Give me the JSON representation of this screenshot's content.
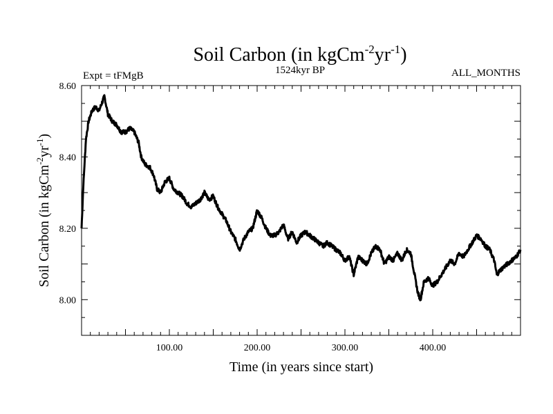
{
  "header": {
    "title_main": "Soil Carbon (in kgCm",
    "title_sup1": "-2",
    "title_mid": "yr",
    "title_sup2": "-1",
    "title_end": ")",
    "expt": "Expt = tFMgB",
    "period": "1524kyr BP",
    "months": "ALL_MONTHS"
  },
  "axes": {
    "xlabel": "Time (in years since start)",
    "ylabel_main": "Soil Carbon (in kgCm",
    "ylabel_sup1": "-2",
    "ylabel_mid": "yr",
    "ylabel_sup2": "-1",
    "ylabel_end": ")"
  },
  "chart_data": {
    "type": "line",
    "title": "Soil Carbon (in kgCm-2yr-1)",
    "subtitle": "1524kyr BP",
    "xlabel": "Time (in years since start)",
    "ylabel": "Soil Carbon (in kgCm-2yr-1)",
    "xlim": [
      0,
      500
    ],
    "ylim": [
      7.9,
      8.6
    ],
    "x_ticks": [
      100,
      200,
      300,
      400
    ],
    "x_tick_labels": [
      "100.00",
      "200.00",
      "300.00",
      "400.00"
    ],
    "y_ticks": [
      8.0,
      8.2,
      8.4,
      8.6
    ],
    "y_tick_labels": [
      "8.00",
      "8.20",
      "8.40",
      "8.60"
    ],
    "grid": false,
    "line_color": "#000000",
    "series": [
      {
        "x": [
          0,
          2,
          5,
          8,
          12,
          16,
          20,
          23,
          26,
          30,
          35,
          40,
          45,
          50,
          55,
          60,
          65,
          68,
          72,
          78,
          82,
          86,
          90,
          95,
          100,
          105,
          110,
          115,
          120,
          125,
          130,
          135,
          140,
          145,
          150,
          155,
          160,
          165,
          170,
          175,
          180,
          185,
          190,
          195,
          200,
          205,
          210,
          215,
          220,
          225,
          230,
          235,
          240,
          245,
          250,
          255,
          260,
          265,
          270,
          275,
          280,
          285,
          290,
          295,
          300,
          305,
          310,
          315,
          320,
          325,
          330,
          335,
          340,
          345,
          350,
          355,
          360,
          365,
          370,
          375,
          380,
          383,
          386,
          390,
          395,
          400,
          405,
          410,
          415,
          420,
          425,
          430,
          435,
          440,
          445,
          450,
          455,
          460,
          465,
          470,
          473,
          476,
          480,
          485,
          490,
          495,
          500
        ],
        "y": [
          8.2,
          8.32,
          8.45,
          8.5,
          8.53,
          8.54,
          8.53,
          8.55,
          8.57,
          8.52,
          8.5,
          8.49,
          8.47,
          8.47,
          8.48,
          8.47,
          8.44,
          8.4,
          8.38,
          8.37,
          8.35,
          8.31,
          8.3,
          8.33,
          8.34,
          8.31,
          8.3,
          8.29,
          8.27,
          8.26,
          8.27,
          8.28,
          8.3,
          8.28,
          8.29,
          8.26,
          8.24,
          8.22,
          8.19,
          8.17,
          8.14,
          8.17,
          8.19,
          8.2,
          8.25,
          8.23,
          8.2,
          8.18,
          8.18,
          8.19,
          8.21,
          8.17,
          8.19,
          8.16,
          8.18,
          8.19,
          8.18,
          8.17,
          8.16,
          8.15,
          8.16,
          8.15,
          8.14,
          8.13,
          8.11,
          8.12,
          8.07,
          8.12,
          8.11,
          8.1,
          8.13,
          8.15,
          8.14,
          8.1,
          8.12,
          8.11,
          8.13,
          8.11,
          8.14,
          8.13,
          8.06,
          8.02,
          8.0,
          8.05,
          8.06,
          8.04,
          8.05,
          8.07,
          8.09,
          8.11,
          8.1,
          8.13,
          8.12,
          8.14,
          8.16,
          8.18,
          8.17,
          8.15,
          8.14,
          8.11,
          8.07,
          8.08,
          8.09,
          8.1,
          8.11,
          8.12,
          8.14
        ]
      }
    ]
  }
}
